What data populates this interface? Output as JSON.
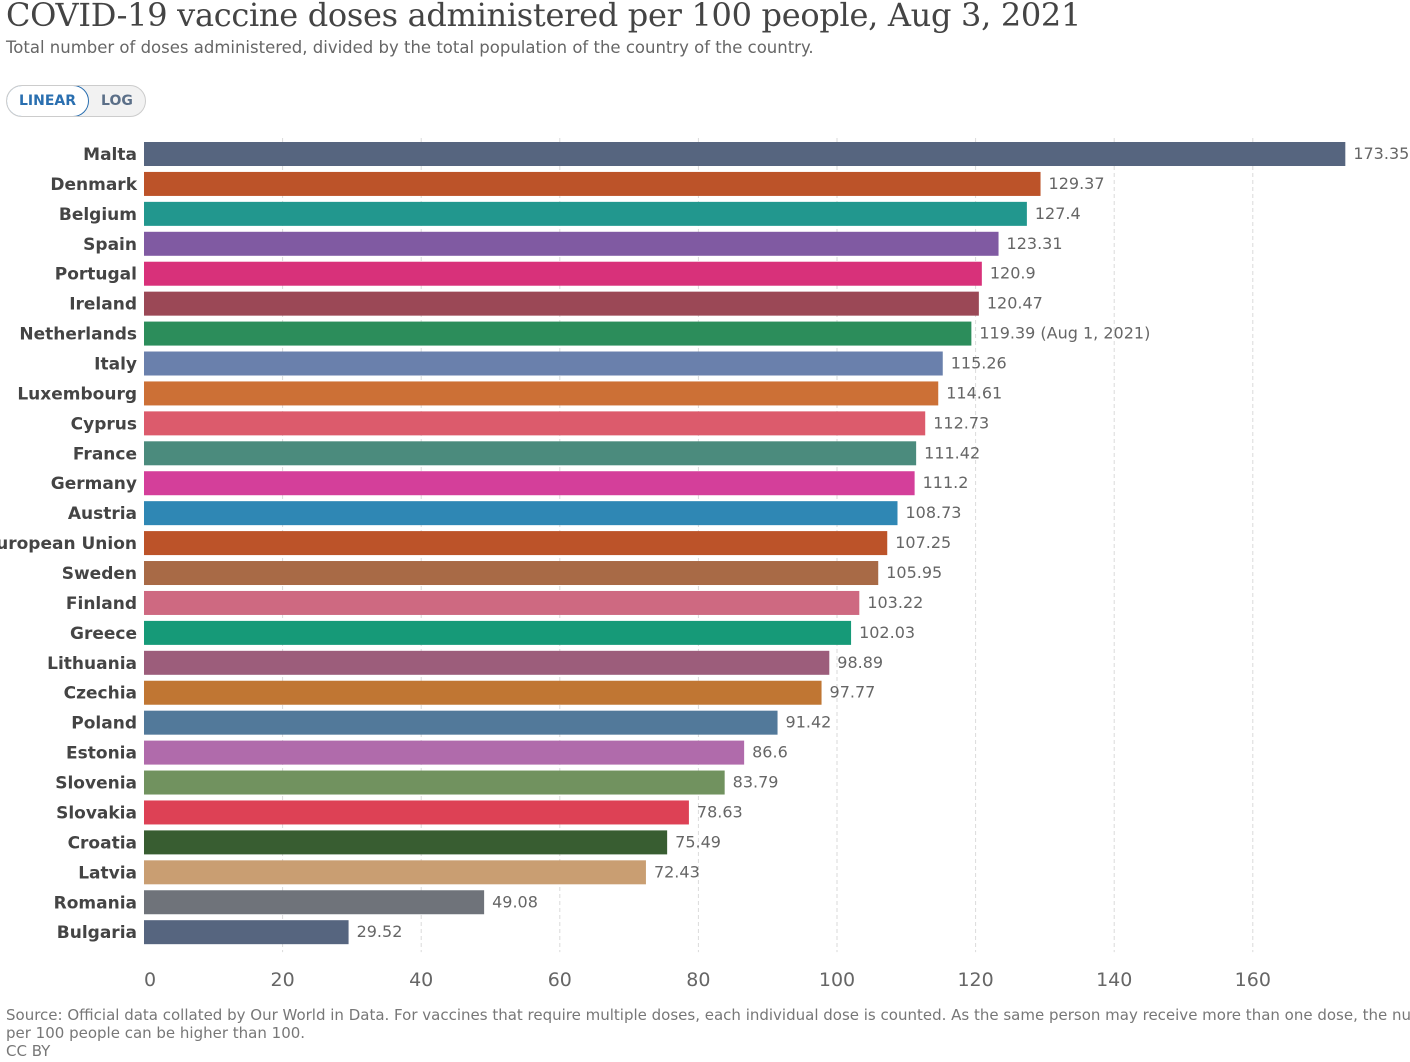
{
  "title": "COVID-19 vaccine doses administered per 100 people, Aug 3, 2021",
  "subtitle": "Total number of doses administered, divided by the total population of the country of the country.",
  "scale_toggle": {
    "linear": "LINEAR",
    "log": "LOG",
    "selected": "LINEAR"
  },
  "footer": {
    "source_line1": "Source: Official data collated by Our World in Data. For vaccines that require multiple doses, each individual dose is counted. As the same person may receive more than one dose, the number of doses",
    "source_line2": "per 100 people can be higher than 100.",
    "license": "CC BY"
  },
  "chart_data": {
    "type": "bar",
    "orientation": "horizontal",
    "title": "COVID-19 vaccine doses administered per 100 people, Aug 3, 2021",
    "xlabel": "",
    "ylabel": "",
    "xlim": [
      0,
      175
    ],
    "xticks": [
      0,
      20,
      40,
      60,
      80,
      100,
      120,
      140,
      160
    ],
    "grid": true,
    "categories": [
      "Malta",
      "Denmark",
      "Belgium",
      "Spain",
      "Portugal",
      "Ireland",
      "Netherlands",
      "Italy",
      "Luxembourg",
      "Cyprus",
      "France",
      "Germany",
      "Austria",
      "European Union",
      "Sweden",
      "Finland",
      "Greece",
      "Lithuania",
      "Czechia",
      "Poland",
      "Estonia",
      "Slovenia",
      "Slovakia",
      "Croatia",
      "Latvia",
      "Romania",
      "Bulgaria"
    ],
    "values": [
      173.35,
      129.37,
      127.4,
      123.31,
      120.9,
      120.47,
      119.39,
      115.26,
      114.61,
      112.73,
      111.42,
      111.2,
      108.73,
      107.25,
      105.95,
      103.22,
      102.03,
      98.89,
      97.77,
      91.42,
      86.6,
      83.79,
      78.63,
      75.49,
      72.43,
      49.08,
      29.52
    ],
    "labels": [
      "173.35",
      "129.37",
      "127.4",
      "123.31",
      "120.9",
      "120.47",
      "119.39 (Aug 1, 2021)",
      "115.26",
      "114.61",
      "112.73",
      "111.42",
      "111.2",
      "108.73",
      "107.25",
      "105.95",
      "103.22",
      "102.03",
      "98.89",
      "97.77",
      "91.42",
      "86.6",
      "83.79",
      "78.63",
      "75.49",
      "72.43",
      "49.08",
      "29.52"
    ],
    "colors": [
      "#56657f",
      "#bc5329",
      "#22978e",
      "#805aa2",
      "#d8317a",
      "#9b4856",
      "#2c8d5b",
      "#6a80ac",
      "#cc7036",
      "#dc5b6c",
      "#4b8b7d",
      "#d43f9a",
      "#2f87b4",
      "#bc5329",
      "#a86a46",
      "#ce6981",
      "#169a78",
      "#9c5d7b",
      "#c07633",
      "#52799a",
      "#b06bab",
      "#71925f",
      "#dd4155",
      "#385d31",
      "#c99e72",
      "#6f737a",
      "#56657f"
    ]
  }
}
